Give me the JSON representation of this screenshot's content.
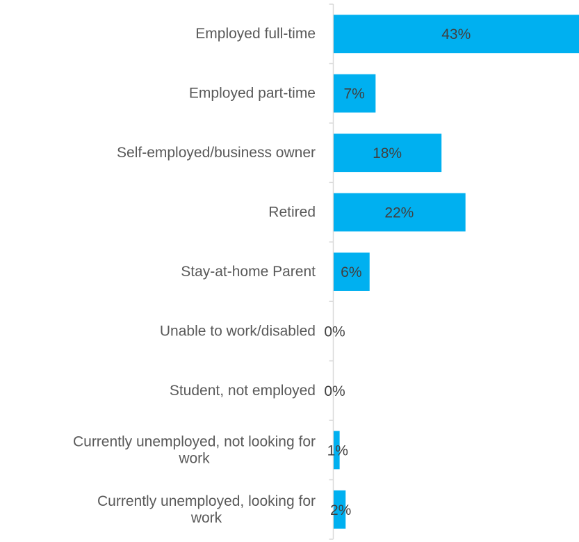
{
  "chart_data": {
    "type": "bar",
    "orientation": "horizontal",
    "categories": [
      [
        "Employed full-time"
      ],
      [
        "Employed part-time"
      ],
      [
        "Self-employed/business owner"
      ],
      [
        "Retired"
      ],
      [
        "Stay-at-home Parent"
      ],
      [
        "Unable to work/disabled"
      ],
      [
        "Student, not employed"
      ],
      [
        "Currently unemployed, not looking for",
        "work"
      ],
      [
        "Currently unemployed, looking for",
        "work"
      ]
    ],
    "values": [
      43,
      7,
      18,
      22,
      6,
      0,
      0,
      1,
      2
    ],
    "value_labels": [
      "43%",
      "7%",
      "18%",
      "22%",
      "6%",
      "0%",
      "0%",
      "1%",
      "2%"
    ],
    "unit": "%",
    "xlim": [
      0,
      41
    ],
    "bar_color": "#00B0F0",
    "grid": false,
    "legend": "none"
  }
}
